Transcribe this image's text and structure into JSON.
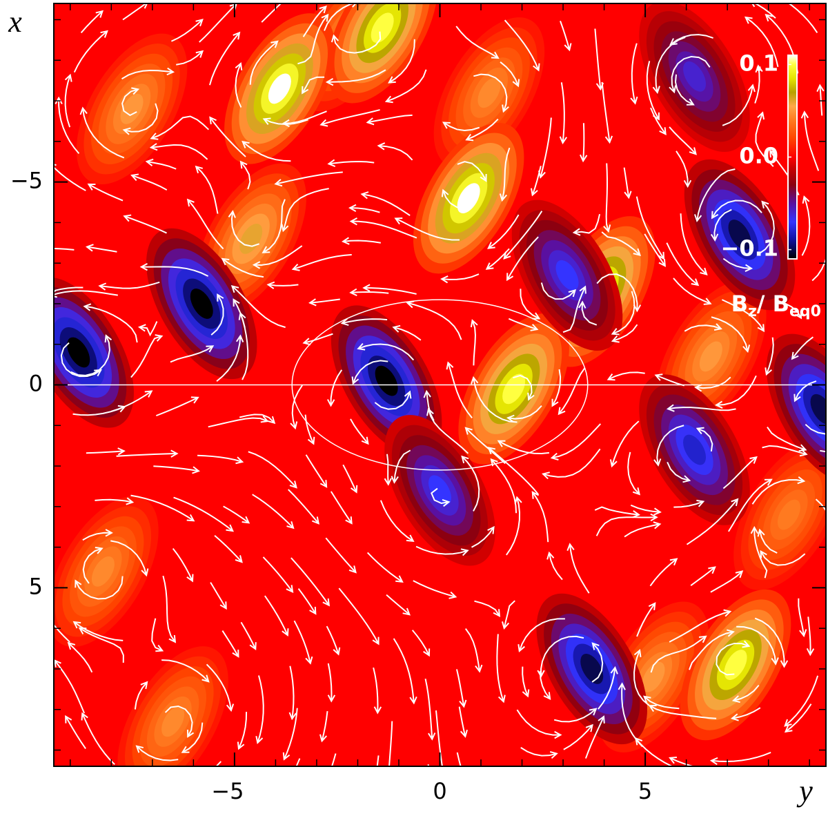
{
  "chart_data": {
    "type": "contour",
    "xlabel": "y",
    "ylabel": "x",
    "xlim": [
      -9.4,
      9.4
    ],
    "ylim": [
      -9.4,
      9.4
    ],
    "xticks": [
      {
        "value": -5,
        "label": "−5"
      },
      0,
      5
    ],
    "yticks": [
      {
        "value": -5,
        "label": "−5"
      },
      0,
      5
    ],
    "minor_ticks": [
      -9,
      -8,
      -7,
      -6,
      -4,
      -3,
      -2,
      -1,
      1,
      2,
      3,
      4,
      6,
      7,
      8,
      9
    ],
    "background_color": "#ff0000",
    "colormap": [
      [
        -0.11,
        "#000000"
      ],
      [
        -0.09,
        "#10109a"
      ],
      [
        -0.07,
        "#3434ff"
      ],
      [
        -0.05,
        "#5a10a0"
      ],
      [
        -0.03,
        "#8c0010"
      ],
      [
        -0.012,
        "#c80000"
      ],
      [
        0,
        "#ff0000"
      ],
      [
        0.02,
        "#ff4500"
      ],
      [
        0.04,
        "#ff7a20"
      ],
      [
        0.055,
        "#ffa648"
      ],
      [
        0.07,
        "#b8a000"
      ],
      [
        0.085,
        "#e4e400"
      ],
      [
        0.1,
        "#ffff40"
      ],
      [
        0.11,
        "#ffffff"
      ]
    ],
    "clim": [
      -0.11,
      0.11
    ],
    "cticks": [
      0.1,
      {
        "value": 0,
        "label": "0.0"
      },
      {
        "value": -0.1,
        "label": "−0.1"
      }
    ],
    "colorbar_label": [
      "B",
      "z",
      "/ B",
      "eq0"
    ],
    "features": [
      {
        "y": -7.5,
        "x": -6.8,
        "value": 0.05
      },
      {
        "y": -4.6,
        "x": -3.6,
        "value": 0.06
      },
      {
        "y": -2.2,
        "x": -8.6,
        "value": 0.05
      },
      {
        "y": 6.6,
        "x": -0.7,
        "value": 0.05
      },
      {
        "y": -8.2,
        "x": 4.6,
        "value": 0.045
      },
      {
        "y": 5.2,
        "x": 7.2,
        "value": 0.05
      },
      {
        "y": -6.5,
        "x": 8.3,
        "value": 0.045
      },
      {
        "y": 1.2,
        "x": -7.2,
        "value": 0.045
      },
      {
        "y": 8.5,
        "x": 3.2,
        "value": 0.04
      },
      {
        "y": -3.9,
        "x": -7.3,
        "value": 0.11
      },
      {
        "y": -1.4,
        "x": -8.8,
        "value": 0.1
      },
      {
        "y": 0.7,
        "x": -4.6,
        "value": 0.11
      },
      {
        "y": 3.9,
        "x": -2.3,
        "value": 0.1
      },
      {
        "y": 1.8,
        "x": 0.1,
        "value": 0.1
      },
      {
        "y": 7.2,
        "x": 6.9,
        "value": 0.1
      },
      {
        "y": -8.8,
        "x": -0.8,
        "value": -0.11
      },
      {
        "y": -5.8,
        "x": -2.0,
        "value": -0.11
      },
      {
        "y": -1.3,
        "x": -0.1,
        "value": -0.11
      },
      {
        "y": 0.0,
        "x": 2.6,
        "value": -0.07
      },
      {
        "y": 7.3,
        "x": -3.7,
        "value": -0.1
      },
      {
        "y": 3.7,
        "x": 7.0,
        "value": -0.1
      },
      {
        "y": 6.2,
        "x": 1.6,
        "value": -0.08
      },
      {
        "y": 3.1,
        "x": -2.7,
        "value": -0.07
      },
      {
        "y": 6.2,
        "x": -7.6,
        "value": -0.06
      },
      {
        "y": 9.3,
        "x": 0.6,
        "value": -0.1
      }
    ]
  }
}
